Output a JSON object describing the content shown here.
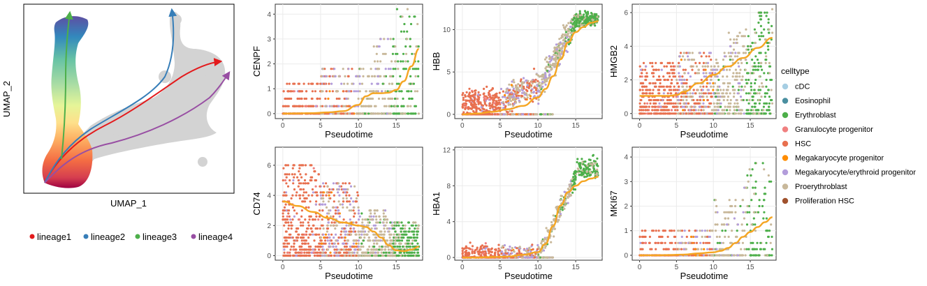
{
  "colors": {
    "cDC": "#a6cee3",
    "Eosinophil": "#4a8fa0",
    "Erythroblast": "#4daf4a",
    "Granulocyte progenitor": "#f08080",
    "HSC": "#e8704f",
    "Megakaryocyte progenitor": "#ff8c00",
    "Megakaryocyte/erythroid progenitor": "#b39ddb",
    "Proerythroblast": "#c8b89a",
    "Proliferation HSC": "#a0522d",
    "trend": "#f5a623",
    "lineage1": "#e31a1c",
    "lineage2": "#377eb8",
    "lineage3": "#4daf4a",
    "lineage4": "#984ea3"
  },
  "umap": {
    "xlabel": "UMAP_1",
    "ylabel": "UMAP_2",
    "lineage_legend": [
      "lineage1",
      "lineage2",
      "lineage3",
      "lineage4"
    ]
  },
  "celltype_legend": {
    "title": "celltype",
    "items": [
      "cDC",
      "Eosinophil",
      "Erythroblast",
      "Granulocyte progenitor",
      "HSC",
      "Megakaryocyte progenitor",
      "Megakaryocyte/erythroid progenitor",
      "Proerythroblast",
      "Proliferation HSC"
    ]
  },
  "chart_data": [
    {
      "type": "scatter",
      "gene": "CENPF",
      "xlabel": "Pseudotime",
      "ylabel": "CENPF",
      "xlim": [
        -1,
        18.5
      ],
      "ylim": [
        -0.2,
        4.4
      ],
      "xticks": [
        0,
        5,
        10,
        15
      ],
      "yticks": [
        0,
        1,
        2,
        3,
        4
      ],
      "trend": {
        "x": [
          0,
          2,
          4,
          6,
          8,
          10,
          11,
          12,
          13,
          14,
          15,
          16,
          17,
          18
        ],
        "y": [
          0,
          0.01,
          0.02,
          0.05,
          0.1,
          0.35,
          0.7,
          0.82,
          0.82,
          0.84,
          0.95,
          1.3,
          1.9,
          2.6
        ]
      }
    },
    {
      "type": "scatter",
      "gene": "HBB",
      "xlabel": "Pseudotime",
      "ylabel": "HBB",
      "xlim": [
        -1,
        18.5
      ],
      "ylim": [
        -0.5,
        13
      ],
      "xticks": [
        0,
        5,
        10,
        15
      ],
      "yticks": [
        0,
        5,
        10
      ],
      "trend": {
        "x": [
          0,
          2,
          4,
          6,
          8,
          10,
          11,
          12,
          13,
          14,
          15,
          16,
          17,
          18
        ],
        "y": [
          0,
          0.1,
          0.3,
          0.6,
          1.0,
          2.0,
          3.0,
          4.5,
          6.5,
          8.5,
          9.7,
          10.3,
          10.8,
          11.0
        ]
      }
    },
    {
      "type": "scatter",
      "gene": "HMGB2",
      "xlabel": "Pseudotime",
      "ylabel": "HMGB2",
      "xlim": [
        -1,
        18.5
      ],
      "ylim": [
        -0.3,
        6.5
      ],
      "xticks": [
        0,
        5,
        10,
        15
      ],
      "yticks": [
        0,
        2,
        4,
        6
      ],
      "trend": {
        "x": [
          0,
          2,
          4,
          5,
          6,
          8,
          10,
          12,
          14,
          16,
          18
        ],
        "y": [
          1.05,
          1.05,
          1.05,
          1.1,
          1.3,
          1.8,
          2.3,
          2.8,
          3.3,
          3.9,
          4.5
        ]
      }
    },
    {
      "type": "scatter",
      "gene": "CD74",
      "xlabel": "Pseudotime",
      "ylabel": "CD74",
      "xlim": [
        -1,
        18.5
      ],
      "ylim": [
        -0.3,
        7.2
      ],
      "xticks": [
        0,
        5,
        10,
        15
      ],
      "yticks": [
        0,
        2,
        4,
        6
      ],
      "trend": {
        "x": [
          0,
          2,
          4,
          6,
          8,
          10,
          11,
          12,
          13,
          14,
          15,
          16,
          17,
          18
        ],
        "y": [
          3.6,
          3.3,
          2.9,
          2.5,
          2.2,
          2.0,
          1.9,
          1.6,
          1.2,
          0.7,
          0.35,
          0.3,
          0.4,
          0.6
        ]
      }
    },
    {
      "type": "scatter",
      "gene": "HBA1",
      "xlabel": "Pseudotime",
      "ylabel": "HBA1",
      "xlim": [
        -1,
        18.5
      ],
      "ylim": [
        -0.3,
        12.3
      ],
      "xticks": [
        0,
        5,
        10,
        15
      ],
      "yticks": [
        0,
        4,
        8,
        12
      ],
      "trend": {
        "x": [
          0,
          2,
          4,
          6,
          8,
          10,
          11,
          12,
          13,
          14,
          15,
          16,
          17,
          18
        ],
        "y": [
          0,
          0,
          0.05,
          0.1,
          0.3,
          0.6,
          1.5,
          3.5,
          5.8,
          7.3,
          8.0,
          8.5,
          8.8,
          9.0
        ]
      }
    },
    {
      "type": "scatter",
      "gene": "MKI67",
      "xlabel": "Pseudotime",
      "ylabel": "MKI67",
      "xlim": [
        -1,
        18.5
      ],
      "ylim": [
        -0.2,
        4.4
      ],
      "xticks": [
        0,
        5,
        10,
        15
      ],
      "yticks": [
        0,
        1,
        2,
        3,
        4
      ],
      "trend": {
        "x": [
          0,
          2,
          4,
          6,
          8,
          10,
          11,
          12,
          13,
          14,
          15,
          16,
          17,
          18
        ],
        "y": [
          0,
          0,
          0.01,
          0.03,
          0.08,
          0.12,
          0.18,
          0.3,
          0.5,
          0.75,
          0.95,
          1.15,
          1.35,
          1.55
        ]
      }
    }
  ]
}
